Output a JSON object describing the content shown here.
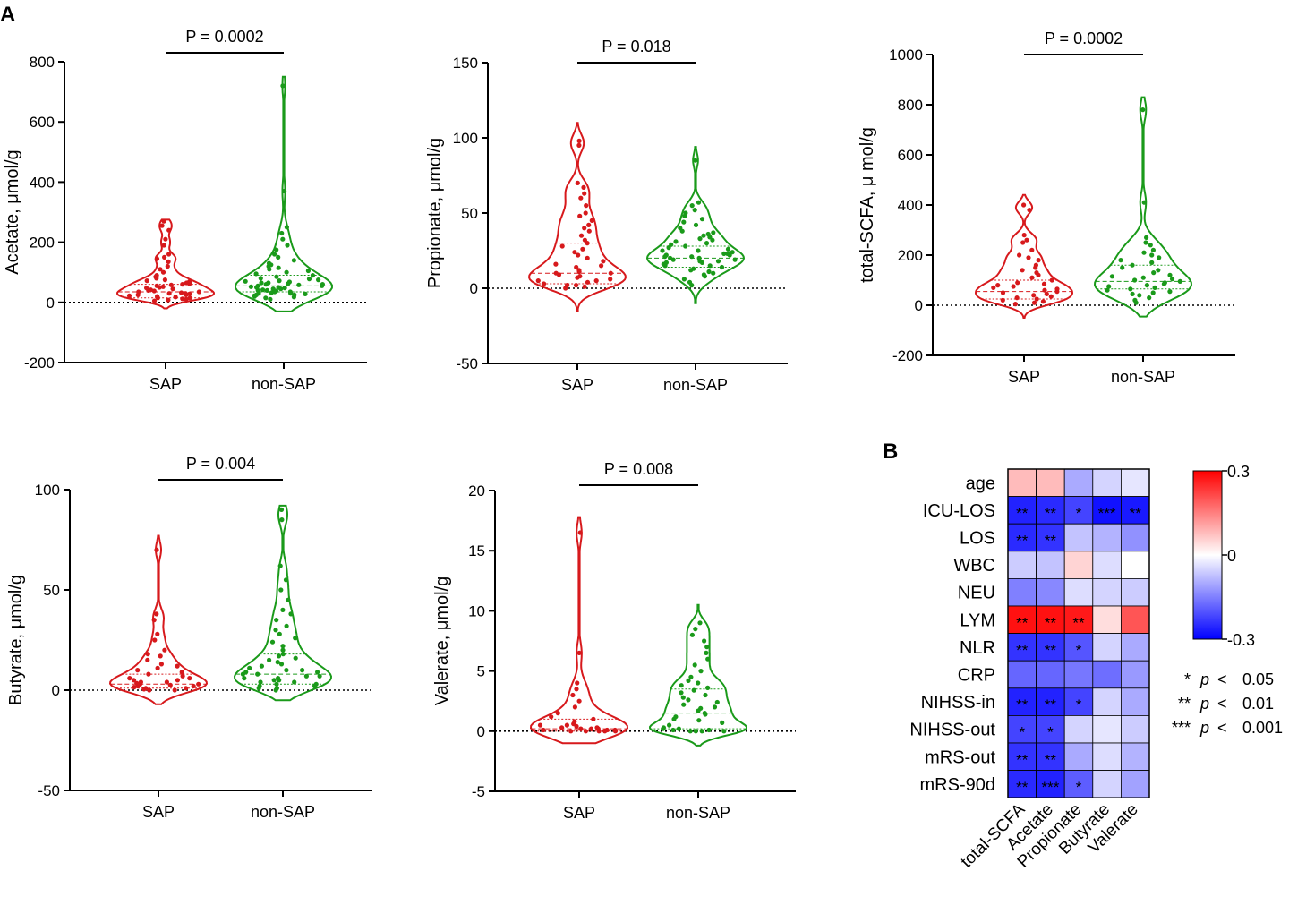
{
  "panel_labels": {
    "a": "A",
    "b": "B"
  },
  "colors": {
    "sap": "#d7191c",
    "non_sap": "#1a9a1a",
    "neg": "#0000ff",
    "mid": "#ffffff",
    "pos": "#ff0000"
  },
  "chart_data": [
    {
      "type": "violin",
      "ylabel": "Acetate, μmol/g",
      "categories": [
        "SAP",
        "non-SAP"
      ],
      "ylim": [
        -200,
        800
      ],
      "yticks": [
        -200,
        0,
        200,
        400,
        600,
        800
      ],
      "pvalue": "P = 0.0002",
      "series": [
        {
          "name": "SAP",
          "median": 35,
          "q1": 15,
          "q3": 60,
          "min": -20,
          "max": 275,
          "values": [
            5,
            8,
            10,
            12,
            15,
            15,
            18,
            20,
            22,
            25,
            25,
            28,
            30,
            30,
            32,
            35,
            35,
            38,
            40,
            42,
            45,
            48,
            50,
            52,
            55,
            58,
            60,
            62,
            65,
            70,
            72,
            75,
            80,
            85,
            90,
            100,
            110,
            120,
            135,
            145,
            150,
            160,
            190,
            210,
            240,
            255,
            270
          ]
        },
        {
          "name": "non-SAP",
          "median": 55,
          "q1": 35,
          "q3": 90,
          "min": -30,
          "max": 750,
          "values": [
            10,
            15,
            18,
            20,
            22,
            25,
            25,
            28,
            30,
            30,
            32,
            35,
            35,
            38,
            40,
            40,
            42,
            45,
            45,
            48,
            50,
            50,
            52,
            55,
            55,
            58,
            60,
            60,
            62,
            65,
            65,
            68,
            70,
            72,
            75,
            78,
            80,
            85,
            90,
            95,
            100,
            105,
            110,
            115,
            120,
            125,
            130,
            140,
            150,
            160,
            175,
            190,
            210,
            230,
            250,
            370,
            720
          ]
        }
      ]
    },
    {
      "type": "violin",
      "ylabel": "Propionate, μmol/g",
      "categories": [
        "SAP",
        "non-SAP"
      ],
      "ylim": [
        -50,
        150
      ],
      "yticks": [
        -50,
        0,
        50,
        100,
        150
      ],
      "pvalue": "P = 0.018",
      "series": [
        {
          "name": "SAP",
          "median": 10,
          "q1": 3,
          "q3": 30,
          "min": -15,
          "max": 110,
          "values": [
            0,
            1,
            2,
            2,
            3,
            4,
            5,
            5,
            6,
            7,
            8,
            9,
            10,
            10,
            11,
            12,
            14,
            15,
            16,
            18,
            20,
            22,
            24,
            26,
            28,
            30,
            32,
            35,
            38,
            40,
            42,
            45,
            48,
            50,
            55,
            60,
            63,
            67,
            70,
            95,
            98
          ]
        },
        {
          "name": "non-SAP",
          "median": 20,
          "q1": 14,
          "q3": 28,
          "min": -10,
          "max": 94,
          "values": [
            2,
            4,
            6,
            8,
            9,
            10,
            11,
            12,
            13,
            14,
            15,
            15,
            16,
            17,
            17,
            18,
            18,
            19,
            19,
            20,
            20,
            21,
            21,
            22,
            22,
            23,
            23,
            24,
            25,
            25,
            26,
            27,
            28,
            29,
            30,
            31,
            32,
            33,
            34,
            35,
            36,
            37,
            38,
            40,
            42,
            44,
            46,
            48,
            50,
            52,
            55,
            57,
            85
          ]
        }
      ]
    },
    {
      "type": "violin",
      "ylabel": "total-SCFA, μ mol/g",
      "categories": [
        "SAP",
        "non-SAP"
      ],
      "ylim": [
        -200,
        1000
      ],
      "yticks": [
        -200,
        0,
        200,
        400,
        600,
        800,
        1000
      ],
      "pvalue": "P = 0.0002",
      "series": [
        {
          "name": "SAP",
          "median": 55,
          "q1": 25,
          "q3": 100,
          "min": -50,
          "max": 440,
          "values": [
            5,
            10,
            15,
            20,
            25,
            30,
            35,
            40,
            45,
            50,
            55,
            60,
            65,
            70,
            75,
            80,
            85,
            90,
            100,
            110,
            120,
            130,
            140,
            150,
            160,
            180,
            190,
            200,
            220,
            250,
            260,
            280,
            380,
            400
          ]
        },
        {
          "name": "non-SAP",
          "median": 95,
          "q1": 65,
          "q3": 160,
          "min": -45,
          "max": 830,
          "values": [
            10,
            20,
            30,
            40,
            45,
            50,
            55,
            60,
            65,
            70,
            75,
            80,
            85,
            90,
            95,
            100,
            105,
            110,
            115,
            120,
            130,
            140,
            150,
            160,
            170,
            180,
            190,
            200,
            210,
            220,
            240,
            250,
            270,
            410,
            780
          ]
        }
      ]
    },
    {
      "type": "violin",
      "ylabel": "Butyrate, μmol/g",
      "categories": [
        "SAP",
        "non-SAP"
      ],
      "ylim": [
        -50,
        100
      ],
      "yticks": [
        -50,
        0,
        50,
        100
      ],
      "pvalue": "P = 0.004",
      "series": [
        {
          "name": "SAP",
          "median": 3,
          "q1": 1,
          "q3": 8,
          "min": -7,
          "max": 77,
          "values": [
            0,
            0,
            0.5,
            1,
            1,
            1.5,
            2,
            2,
            2.5,
            3,
            3,
            3.5,
            4,
            4,
            5,
            5,
            6,
            6,
            7,
            8,
            9,
            10,
            11,
            12,
            13,
            15,
            17,
            18,
            20,
            25,
            28,
            35,
            38,
            70
          ]
        },
        {
          "name": "non-SAP",
          "median": 8,
          "q1": 3,
          "q3": 18,
          "min": -5,
          "max": 92,
          "values": [
            0,
            1,
            1,
            2,
            2,
            3,
            3,
            4,
            4,
            5,
            5,
            6,
            6,
            7,
            7,
            8,
            8,
            9,
            9,
            10,
            10,
            11,
            12,
            13,
            14,
            15,
            16,
            17,
            18,
            20,
            22,
            24,
            26,
            28,
            30,
            32,
            35,
            38,
            40,
            45,
            50,
            55,
            62,
            85,
            90
          ]
        }
      ]
    },
    {
      "type": "violin",
      "ylabel": "Valerate, μmol/g",
      "categories": [
        "SAP",
        "non-SAP"
      ],
      "ylim": [
        -5,
        20
      ],
      "yticks": [
        -5,
        0,
        5,
        10,
        15,
        20
      ],
      "pvalue": "P = 0.008",
      "series": [
        {
          "name": "SAP",
          "median": 0.2,
          "q1": 0,
          "q3": 1,
          "min": -1,
          "max": 17.8,
          "values": [
            0,
            0,
            0,
            0,
            0,
            0.1,
            0.1,
            0.1,
            0.2,
            0.2,
            0.2,
            0.3,
            0.3,
            0.4,
            0.5,
            0.5,
            0.6,
            0.8,
            1,
            1.2,
            1.5,
            2,
            2.5,
            3,
            3.5,
            4,
            6.5,
            16.5
          ]
        },
        {
          "name": "non-SAP",
          "median": 1.5,
          "q1": 0.2,
          "q3": 3.5,
          "min": -1.2,
          "max": 10.5,
          "values": [
            0,
            0,
            0,
            0,
            0.1,
            0.1,
            0.2,
            0.2,
            0.3,
            0.5,
            0.7,
            0.9,
            1,
            1.2,
            1.4,
            1.5,
            1.7,
            1.9,
            2,
            2.2,
            2.4,
            2.6,
            2.8,
            3,
            3.2,
            3.4,
            3.6,
            3.8,
            4,
            4.2,
            4.5,
            5,
            5.5,
            6,
            6.5,
            7,
            7.5,
            8,
            8.5,
            9
          ]
        }
      ]
    },
    {
      "type": "heatmap",
      "rows": [
        "age",
        "ICU-LOS",
        "LOS",
        "WBC",
        "NEU",
        "LYM",
        "NLR",
        "CRP",
        "NIHSS-in",
        "NIHSS-out",
        "mRS-out",
        "mRS-90d"
      ],
      "cols": [
        "total-SCFA",
        "Acetate",
        "Propionate",
        "Butyrate",
        "Valerate"
      ],
      "values": [
        [
          0.08,
          0.08,
          -0.1,
          -0.05,
          -0.03
        ],
        [
          -0.26,
          -0.25,
          -0.22,
          -0.28,
          -0.27
        ],
        [
          -0.25,
          -0.24,
          -0.07,
          -0.09,
          -0.13
        ],
        [
          -0.06,
          -0.07,
          0.05,
          -0.04,
          0.0
        ],
        [
          -0.15,
          -0.14,
          -0.04,
          -0.05,
          -0.06
        ],
        [
          0.28,
          0.28,
          0.27,
          0.04,
          0.2
        ],
        [
          -0.24,
          -0.24,
          -0.2,
          -0.05,
          -0.1
        ],
        [
          -0.18,
          -0.18,
          -0.16,
          -0.17,
          -0.12
        ],
        [
          -0.26,
          -0.26,
          -0.22,
          -0.05,
          -0.1
        ],
        [
          -0.22,
          -0.22,
          -0.05,
          -0.03,
          -0.06
        ],
        [
          -0.24,
          -0.24,
          -0.1,
          -0.04,
          -0.09
        ],
        [
          -0.25,
          -0.26,
          -0.19,
          -0.05,
          -0.11
        ]
      ],
      "stars": [
        [
          "",
          "",
          "",
          "",
          ""
        ],
        [
          "**",
          "**",
          "*",
          "***",
          "**"
        ],
        [
          "**",
          "**",
          "",
          "",
          ""
        ],
        [
          "",
          "",
          "",
          "",
          ""
        ],
        [
          "",
          "",
          "",
          "",
          ""
        ],
        [
          "**",
          "**",
          "**",
          "",
          ""
        ],
        [
          "**",
          "**",
          "*",
          "",
          ""
        ],
        [
          "",
          "",
          "",
          "",
          ""
        ],
        [
          "**",
          "**",
          "*",
          "",
          ""
        ],
        [
          "*",
          "*",
          "",
          "",
          ""
        ],
        [
          "**",
          "**",
          "",
          "",
          ""
        ],
        [
          "**",
          "***",
          "*",
          "",
          ""
        ]
      ],
      "color_range": [
        -0.3,
        0.3
      ],
      "colorbar_ticks": [
        "0.3",
        "0",
        "-0.3"
      ],
      "significance_legend": [
        {
          "stars": "*",
          "p": "p",
          "op": "<",
          "thr": "0.05"
        },
        {
          "stars": "**",
          "p": "p",
          "op": "<",
          "thr": "0.01"
        },
        {
          "stars": "***",
          "p": "p",
          "op": "<",
          "thr": "0.001"
        }
      ]
    }
  ]
}
